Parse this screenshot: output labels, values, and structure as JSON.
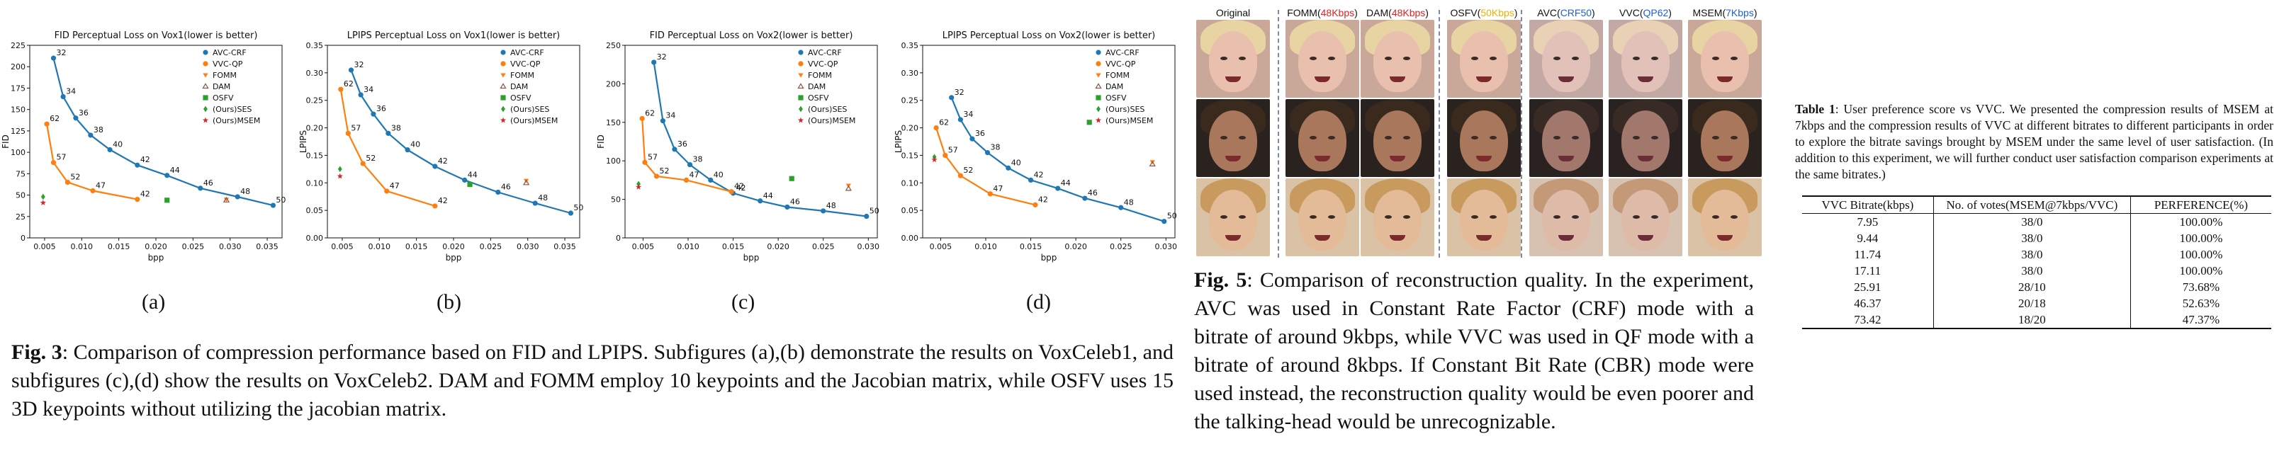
{
  "subfig_labels": [
    "(a)",
    "(b)",
    "(c)",
    "(d)"
  ],
  "fig3_caption": {
    "label": "Fig. 3",
    "text": ":   Comparison of compression performance based on FID and LPIPS. Subfigures (a),(b) demonstrate the results on VoxCeleb1, and subfigures (c),(d) show the results on VoxCeleb2. DAM and FOMM employ 10 keypoints and the Jacobian matrix, while OSFV uses 15 3D keypoints without utilizing the jacobian matrix."
  },
  "fig5_caption": {
    "label": "Fig. 5",
    "text": ":  Comparison of reconstruction quality.  In the experiment, AVC was used in Constant Rate Factor (CRF) mode with a bitrate of around 9kbps, while VVC was used in QF mode with a bitrate of around 8kbps.  If Constant Bit Rate (CBR) mode were used instead, the reconstruction quality would be even poorer and the talking-head would be unrecognizable."
  },
  "table_caption": {
    "label": "Table 1",
    "text": ": User preference score vs VVC. We presented the compression results of MSEM at 7kbps and the compression results of VVC at different bitrates to different participants in order to explore the bitrate savings brought by MSEM under the same level of user satisfaction. (In addition to this experiment, we will further conduct user satisfaction comparison experiments at the same bitrates.)"
  },
  "table": {
    "headers": [
      "VVC Bitrate(kbps)",
      "No. of votes(MSEM@7kbps/VVC)",
      "PERFERENCE(%)"
    ],
    "rows": [
      [
        "7.95",
        "38/0",
        "100.00%"
      ],
      [
        "9.44",
        "38/0",
        "100.00%"
      ],
      [
        "11.74",
        "38/0",
        "100.00%"
      ],
      [
        "17.11",
        "38/0",
        "100.00%"
      ],
      [
        "25.91",
        "28/10",
        "73.68%"
      ],
      [
        "46.37",
        "20/18",
        "52.63%"
      ],
      [
        "73.42",
        "18/20",
        "47.37%"
      ]
    ]
  },
  "fig5_columns": [
    {
      "pre": "Original",
      "hl": "",
      "post": ""
    },
    {
      "pre": "FOMM(",
      "hl": "48Kbps",
      "post": ")"
    },
    {
      "pre": "DAM(",
      "hl": "48Kbps",
      "post": ")"
    },
    {
      "pre": "OSFV(",
      "hl": "50Kbps",
      "post": ")"
    },
    {
      "pre": "AVC(",
      "hl": "CRF50",
      "post": ")"
    },
    {
      "pre": "VVC(",
      "hl": "QP62",
      "post": ")"
    },
    {
      "pre": "MSEM(",
      "hl": "7Kbps",
      "post": ")"
    }
  ],
  "fig5_colors": {
    "red": "#e02020",
    "yellow": "#e8b400",
    "blue": "#2060d8"
  },
  "chart_data": [
    {
      "type": "line",
      "title": "FID Perceptual Loss on Vox1(lower is better)",
      "xlabel": "bpp",
      "ylabel": "FID",
      "xlim": [
        0.003,
        0.037
      ],
      "ylim": [
        0,
        225
      ],
      "xticks": [
        0.005,
        0.01,
        0.015,
        0.02,
        0.025,
        0.03,
        0.035
      ],
      "yticks": [
        0,
        25,
        50,
        75,
        100,
        125,
        150,
        175,
        200,
        225
      ],
      "xtick_labels": [
        "0.005",
        "0.010",
        "0.015",
        "0.020",
        "0.025",
        "0.030",
        "0.035"
      ],
      "ytick_labels": [
        "0",
        "25",
        "50",
        "75",
        "100",
        "125",
        "150",
        "175",
        "200",
        "225"
      ],
      "legend": [
        "AVC-CRF",
        "VVC-QP",
        "FOMM",
        "DAM",
        "OSFV",
        "(Ours)SES",
        "(Ours)MSEM"
      ],
      "legend_position": "top-right",
      "series": [
        {
          "name": "AVC-CRF",
          "x": [
            0.0062,
            0.0075,
            0.0092,
            0.0112,
            0.0138,
            0.0175,
            0.0215,
            0.026,
            0.031,
            0.0358
          ],
          "y": [
            210,
            165,
            140,
            120,
            103,
            85,
            73,
            58,
            48,
            38
          ],
          "labels": [
            "32",
            "34",
            "36",
            "38",
            "40",
            "42",
            "44",
            "46",
            "48",
            "50"
          ]
        },
        {
          "name": "VVC-QP",
          "x": [
            0.0053,
            0.0062,
            0.0081,
            0.0115,
            0.0175
          ],
          "y": [
            133,
            88,
            65,
            55,
            45
          ],
          "labels": [
            "62",
            "57",
            "52",
            "47",
            "42"
          ]
        },
        {
          "name": "FOMM",
          "x": [
            0.0295
          ],
          "y": [
            45
          ]
        },
        {
          "name": "DAM",
          "x": [
            0.0295
          ],
          "y": [
            44
          ]
        },
        {
          "name": "OSFV",
          "x": [
            0.0215
          ],
          "y": [
            44
          ]
        },
        {
          "name": "(Ours)SES",
          "x": [
            0.0048
          ],
          "y": [
            48
          ]
        },
        {
          "name": "(Ours)MSEM",
          "x": [
            0.0048
          ],
          "y": [
            41
          ]
        }
      ]
    },
    {
      "type": "line",
      "title": "LPIPS Perceptual Loss on Vox1(lower is better)",
      "xlabel": "bpp",
      "ylabel": "LPIPS",
      "xlim": [
        0.003,
        0.037
      ],
      "ylim": [
        0,
        0.35
      ],
      "xticks": [
        0.005,
        0.01,
        0.015,
        0.02,
        0.025,
        0.03,
        0.035
      ],
      "yticks": [
        0,
        0.05,
        0.1,
        0.15,
        0.2,
        0.25,
        0.3,
        0.35
      ],
      "xtick_labels": [
        "0.005",
        "0.010",
        "0.015",
        "0.020",
        "0.025",
        "0.030",
        "0.035"
      ],
      "ytick_labels": [
        "0.00",
        "0.05",
        "0.10",
        "0.15",
        "0.20",
        "0.25",
        "0.30",
        "0.35"
      ],
      "legend": [
        "AVC-CRF",
        "VVC-QP",
        "FOMM",
        "DAM",
        "OSFV",
        "(Ours)SES",
        "(Ours)MSEM"
      ],
      "legend_position": "top-right",
      "series": [
        {
          "name": "AVC-CRF",
          "x": [
            0.0062,
            0.0075,
            0.0092,
            0.0112,
            0.0138,
            0.0175,
            0.0215,
            0.026,
            0.031,
            0.0358
          ],
          "y": [
            0.305,
            0.26,
            0.225,
            0.19,
            0.16,
            0.13,
            0.105,
            0.083,
            0.063,
            0.045
          ],
          "labels": [
            "32",
            "34",
            "36",
            "38",
            "40",
            "42",
            "44",
            "46",
            "48",
            "50"
          ]
        },
        {
          "name": "VVC-QP",
          "x": [
            0.0048,
            0.0058,
            0.0078,
            0.011,
            0.0175
          ],
          "y": [
            0.27,
            0.19,
            0.135,
            0.085,
            0.058
          ],
          "labels": [
            "62",
            "57",
            "52",
            "47",
            "42"
          ]
        },
        {
          "name": "FOMM",
          "x": [
            0.0298
          ],
          "y": [
            0.104
          ]
        },
        {
          "name": "DAM",
          "x": [
            0.0298
          ],
          "y": [
            0.1
          ]
        },
        {
          "name": "OSFV",
          "x": [
            0.0222
          ],
          "y": [
            0.097
          ]
        },
        {
          "name": "(Ours)SES",
          "x": [
            0.0047
          ],
          "y": [
            0.125
          ]
        },
        {
          "name": "(Ours)MSEM",
          "x": [
            0.0047
          ],
          "y": [
            0.112
          ]
        }
      ]
    },
    {
      "type": "line",
      "title": "FID Perceptual Loss on Vox2(lower is better)",
      "xlabel": "bpp",
      "ylabel": "FID",
      "xlim": [
        0.003,
        0.031
      ],
      "ylim": [
        0,
        250
      ],
      "xticks": [
        0.005,
        0.01,
        0.015,
        0.02,
        0.025,
        0.03
      ],
      "yticks": [
        0,
        50,
        100,
        150,
        200,
        250
      ],
      "xtick_labels": [
        "0.005",
        "0.010",
        "0.015",
        "0.020",
        "0.025",
        "0.030"
      ],
      "ytick_labels": [
        "0",
        "50",
        "100",
        "150",
        "200",
        "250"
      ],
      "legend": [
        "AVC-CRF",
        "VVC-QP",
        "FOMM",
        "DAM",
        "OSFV",
        "(Ours)SES",
        "(Ours)MSEM"
      ],
      "legend_position": "top-right",
      "series": [
        {
          "name": "AVC-CRF",
          "x": [
            0.0062,
            0.0072,
            0.0085,
            0.0102,
            0.0125,
            0.015,
            0.018,
            0.021,
            0.025,
            0.0298
          ],
          "y": [
            228,
            152,
            115,
            95,
            75,
            58,
            48,
            40,
            35,
            28
          ],
          "labels": [
            "32",
            "34",
            "36",
            "38",
            "40",
            "42",
            "44",
            "46",
            "48",
            "50"
          ]
        },
        {
          "name": "VVC-QP",
          "x": [
            0.0049,
            0.0052,
            0.0065,
            0.0098,
            0.0148
          ],
          "y": [
            155,
            98,
            80,
            75,
            60
          ],
          "labels": [
            "62",
            "57",
            "52",
            "47",
            "42"
          ]
        },
        {
          "name": "FOMM",
          "x": [
            0.0278
          ],
          "y": [
            68
          ]
        },
        {
          "name": "DAM",
          "x": [
            0.0278
          ],
          "y": [
            64
          ]
        },
        {
          "name": "OSFV",
          "x": [
            0.0215
          ],
          "y": [
            77
          ]
        },
        {
          "name": "(Ours)SES",
          "x": [
            0.0045
          ],
          "y": [
            70
          ]
        },
        {
          "name": "(Ours)MSEM",
          "x": [
            0.0045
          ],
          "y": [
            66
          ]
        }
      ]
    },
    {
      "type": "line",
      "title": "LPIPS Perceptual Loss on Vox2(lower is better)",
      "xlabel": "bpp",
      "ylabel": "LPIPS",
      "xlim": [
        0.003,
        0.031
      ],
      "ylim": [
        0,
        0.35
      ],
      "xticks": [
        0.005,
        0.01,
        0.015,
        0.02,
        0.025,
        0.03
      ],
      "yticks": [
        0,
        0.05,
        0.1,
        0.15,
        0.2,
        0.25,
        0.3,
        0.35
      ],
      "xtick_labels": [
        "0.005",
        "0.010",
        "0.015",
        "0.020",
        "0.025",
        "0.030"
      ],
      "ytick_labels": [
        "0.00",
        "0.05",
        "0.10",
        "0.15",
        "0.20",
        "0.25",
        "0.30",
        "0.35"
      ],
      "legend": [
        "AVC-CRF",
        "VVC-QP",
        "FOMM",
        "DAM",
        "OSFV",
        "(Ours)SES",
        "(Ours)MSEM"
      ],
      "legend_position": "top-right",
      "series": [
        {
          "name": "AVC-CRF",
          "x": [
            0.0062,
            0.0072,
            0.0085,
            0.0102,
            0.0125,
            0.015,
            0.018,
            0.021,
            0.025,
            0.0298
          ],
          "y": [
            0.255,
            0.215,
            0.18,
            0.155,
            0.127,
            0.105,
            0.09,
            0.072,
            0.055,
            0.03
          ],
          "labels": [
            "32",
            "34",
            "36",
            "38",
            "40",
            "42",
            "44",
            "46",
            "48",
            "50"
          ]
        },
        {
          "name": "VVC-QP",
          "x": [
            0.0045,
            0.0055,
            0.0072,
            0.0105,
            0.0155
          ],
          "y": [
            0.2,
            0.15,
            0.113,
            0.08,
            0.06
          ],
          "labels": [
            "62",
            "57",
            "52",
            "47",
            "42"
          ]
        },
        {
          "name": "FOMM",
          "x": [
            0.0285
          ],
          "y": [
            0.138
          ]
        },
        {
          "name": "DAM",
          "x": [
            0.0285
          ],
          "y": [
            0.134
          ]
        },
        {
          "name": "OSFV",
          "x": [
            0.0215
          ],
          "y": [
            0.21
          ]
        },
        {
          "name": "(Ours)SES",
          "x": [
            0.0043
          ],
          "y": [
            0.147
          ]
        },
        {
          "name": "(Ours)MSEM",
          "x": [
            0.0043
          ],
          "y": [
            0.142
          ]
        }
      ]
    }
  ]
}
